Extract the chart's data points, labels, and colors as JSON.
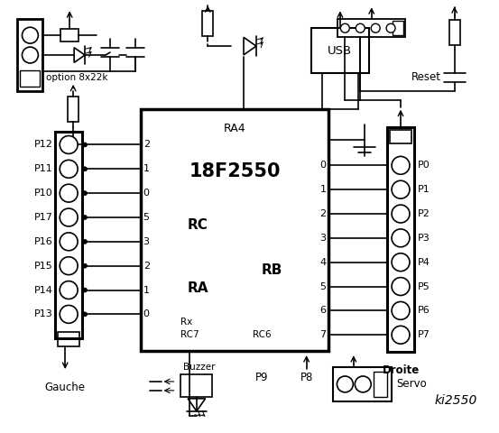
{
  "title": "ki2550",
  "bg_color": "#ffffff",
  "chip_label": "18F2550",
  "chip_sublabel": "RA4",
  "left_pins": [
    "P12",
    "P11",
    "P10",
    "P17",
    "P16",
    "P15",
    "P14",
    "P13"
  ],
  "right_pins": [
    "P0",
    "P1",
    "P2",
    "P3",
    "P4",
    "P5",
    "P6",
    "P7"
  ],
  "left_rc_labels": [
    "2",
    "1",
    "0",
    "5",
    "3",
    "2",
    "1",
    "0"
  ],
  "right_rb_labels": [
    "0",
    "1",
    "2",
    "3",
    "4",
    "5",
    "6",
    "7"
  ],
  "rc_label": "RC",
  "ra_label": "RA",
  "rb_label": "RB",
  "rx_label": "Rx",
  "rc7_label": "RC7",
  "rc6_label": "RC6",
  "usb_label": "USB",
  "reset_label": "Reset",
  "gauche_label": "Gauche",
  "droite_label": "Droite",
  "buzzer_label": "Buzzer",
  "servo_label": "Servo",
  "p9_label": "P9",
  "p8_label": "P8",
  "option_label": "option 8x22k",
  "text_color": "#000000",
  "line_color": "#000000"
}
